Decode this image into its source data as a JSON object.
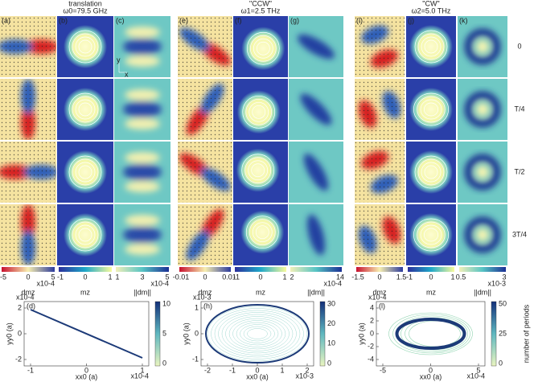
{
  "groups": [
    {
      "title": "translation",
      "subtitle": "ω0=79.5 GHz",
      "panels": [
        "(a)",
        "(b)",
        "(c)"
      ],
      "colorbars": [
        {
          "ticks": [
            "-5",
            "0",
            "5"
          ],
          "exponent": "x10-4",
          "label": "dmz"
        },
        {
          "ticks": [
            "-1",
            "0",
            "1"
          ],
          "label": "mz"
        },
        {
          "ticks": [
            "1",
            "3",
            "5"
          ],
          "exponent": "x10-4",
          "label": "||dm||"
        }
      ],
      "plot": {
        "label": "(d)",
        "xlabel": "xx0 (a)",
        "ylabel": "yy0 (a)",
        "xticks": [
          "-1",
          "0",
          "1"
        ],
        "yticks": [
          "2",
          "0",
          "-2"
        ],
        "x_exponent": "x10-4",
        "y_exponent": "x10-4",
        "cbar_ticks": [
          "10",
          "5",
          "0"
        ]
      }
    },
    {
      "title": "\"CCW\"",
      "subtitle": "ω1=2.5 THz",
      "panels": [
        "(e)",
        "(f)",
        "(g)"
      ],
      "colorbars": [
        {
          "ticks": [
            "-0.01",
            "0",
            "0.01"
          ],
          "label": "dmz"
        },
        {
          "ticks": [
            "-1",
            "0",
            "1"
          ],
          "label": "mz"
        },
        {
          "ticks": [
            "2",
            "14"
          ],
          "exponent": "x10-4",
          "label": "||dm||"
        }
      ],
      "plot": {
        "label": "(h)",
        "xlabel": "xx0 (a)",
        "ylabel": "yy0 (a)",
        "xticks": [
          "-2",
          "-1",
          "0",
          "1",
          "2"
        ],
        "yticks": [
          "1",
          "0",
          "-1"
        ],
        "x_exponent": "x10-3",
        "y_exponent": "x10-3",
        "cbar_ticks": [
          "30",
          "20",
          "10",
          "0"
        ]
      }
    },
    {
      "title": "\"CW\"",
      "subtitle": "ω2=5.0 THz",
      "panels": [
        "(i)",
        "(j)",
        "(k)"
      ],
      "colorbars": [
        {
          "ticks": [
            "-1.5",
            "0",
            "1.5"
          ],
          "label": "dmz"
        },
        {
          "ticks": [
            "-1",
            "0",
            "1"
          ],
          "label": "mz"
        },
        {
          "ticks": [
            "0.5",
            "3"
          ],
          "exponent": "x10-3",
          "label": "||dm||"
        }
      ],
      "plot": {
        "label": "(l)",
        "xlabel": "xx0 (a)",
        "ylabel": "yy0 (a)",
        "xticks": [
          "-5",
          "0",
          "5"
        ],
        "yticks": [
          "4",
          "2",
          "0",
          "-2",
          "-4"
        ],
        "x_exponent": "x10-4",
        "y_exponent": "x10-4",
        "cbar_ticks": [
          "50",
          "25",
          "0"
        ]
      }
    }
  ],
  "row_labels": [
    "0",
    "T/4",
    "T/2",
    "3T/4"
  ],
  "axis_hint": [
    "y",
    "x"
  ],
  "cbar_title": "number of periods"
}
